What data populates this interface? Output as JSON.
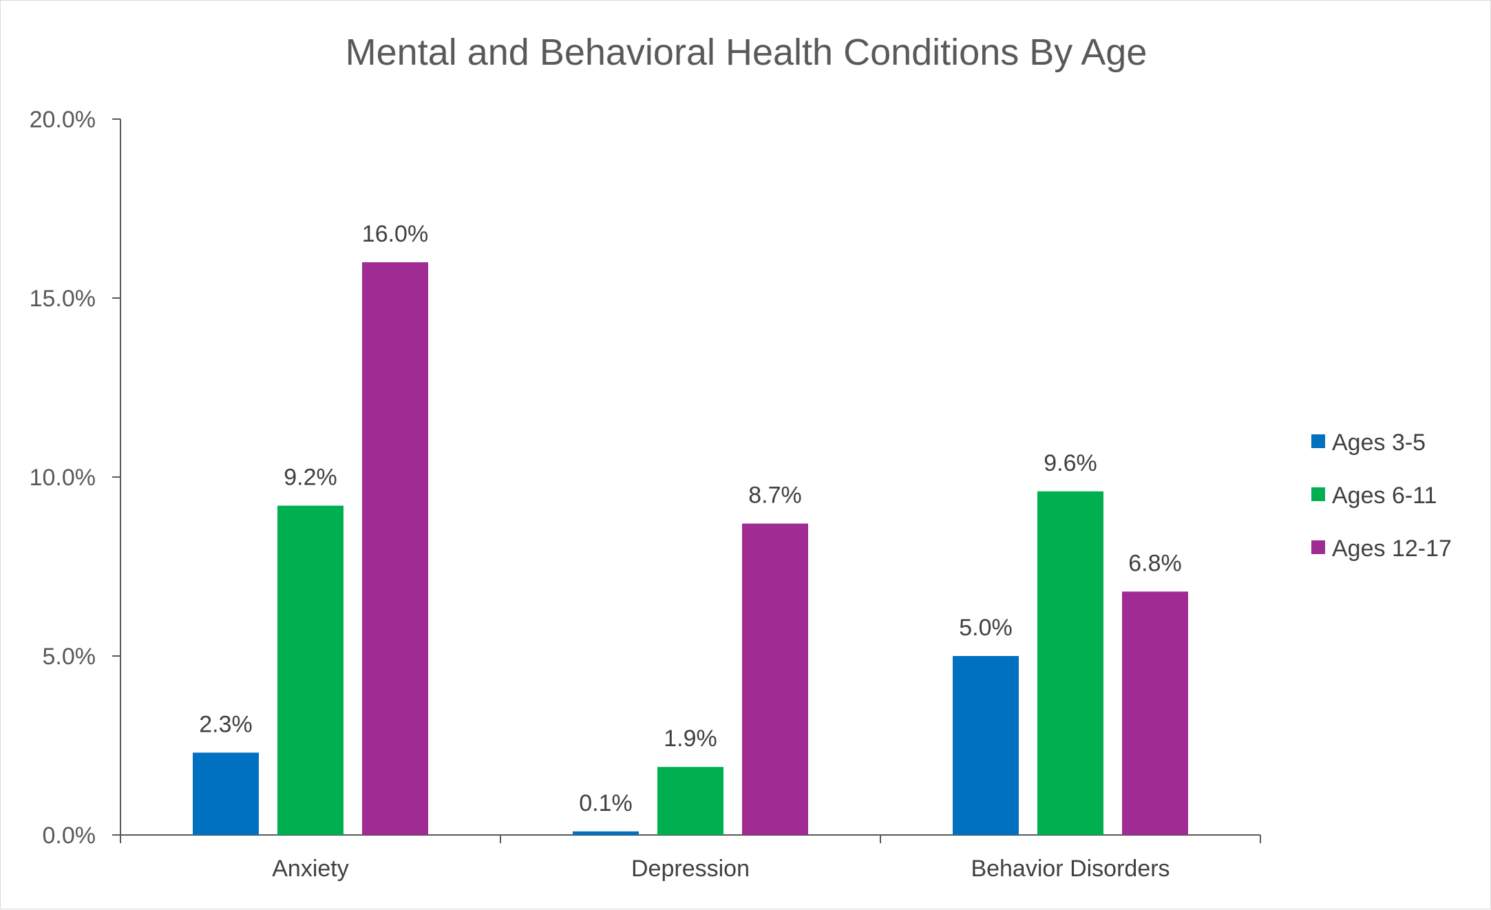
{
  "chart_data": {
    "type": "bar",
    "title": "Mental and Behavioral Health Conditions By Age",
    "xlabel": "",
    "ylabel": "",
    "ylim": [
      0,
      20
    ],
    "yticks": [
      0,
      5,
      10,
      15,
      20
    ],
    "ytick_labels": [
      "0.0%",
      "5.0%",
      "10.0%",
      "15.0%",
      "20.0%"
    ],
    "categories": [
      "Anxiety",
      "Depression",
      "Behavior Disorders"
    ],
    "series": [
      {
        "name": "Ages 3-5",
        "color": "#0070C0",
        "values": [
          2.3,
          0.1,
          5.0
        ],
        "labels": [
          "2.3%",
          "0.1%",
          "5.0%"
        ]
      },
      {
        "name": "Ages 6-11",
        "color": "#00B050",
        "values": [
          9.2,
          1.9,
          9.6
        ],
        "labels": [
          "9.2%",
          "1.9%",
          "9.6%"
        ]
      },
      {
        "name": "Ages 12-17",
        "color": "#A02B93",
        "values": [
          16.0,
          8.7,
          6.8
        ],
        "labels": [
          "16.0%",
          "8.7%",
          "6.8%"
        ]
      }
    ],
    "legend": "right",
    "grid": false
  }
}
